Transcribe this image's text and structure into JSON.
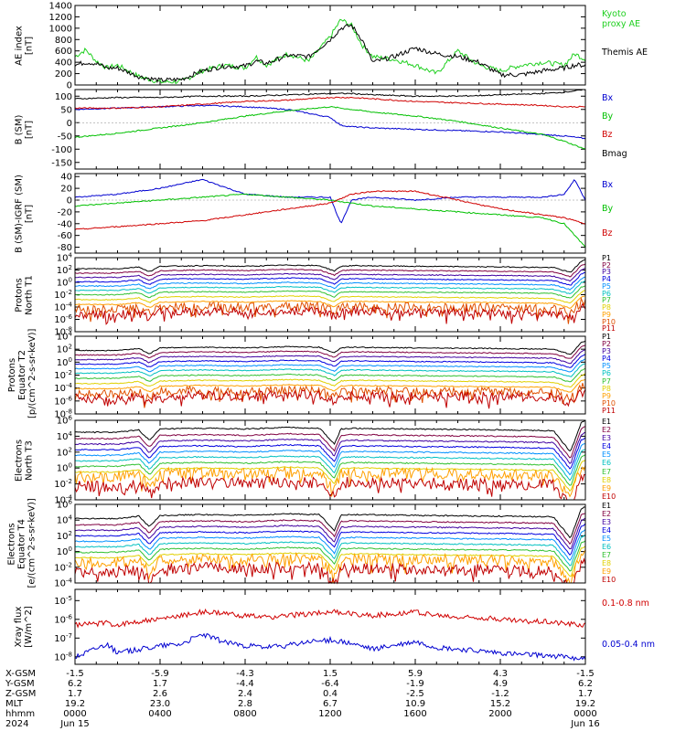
{
  "x_ticks": [
    "0000",
    "0400",
    "0800",
    "1200",
    "1600",
    "2000",
    "0000"
  ],
  "ephemeris": {
    "rows": [
      {
        "label": "X-GSM",
        "values": [
          "-1.5",
          "-5.9",
          "-4.3",
          "1.5",
          "5.9",
          "4.3",
          "-1.5"
        ]
      },
      {
        "label": "Y-GSM",
        "values": [
          "6.2",
          "1.7",
          "-4.4",
          "-6.4",
          "-1.9",
          "4.9",
          "6.2"
        ]
      },
      {
        "label": "Z-GSM",
        "values": [
          "1.7",
          "2.6",
          "2.4",
          "0.4",
          "-2.5",
          "-1.2",
          "1.7"
        ]
      },
      {
        "label": "MLT",
        "values": [
          "19.2",
          "23.0",
          "2.8",
          "6.7",
          "10.9",
          "15.2",
          "19.2"
        ]
      },
      {
        "label": "hhmm",
        "values": [
          "0000",
          "0400",
          "0800",
          "1200",
          "1600",
          "2000",
          "0000"
        ]
      },
      {
        "label": "2024",
        "values": [
          "Jun 15",
          "",
          "",
          "",
          "",
          "",
          "Jun 16"
        ]
      }
    ]
  },
  "colors": {
    "green": "#00c000",
    "blue": "#0000d0",
    "red": "#d00000",
    "black": "#000000",
    "kyoto": "#20d020"
  },
  "chart_data": [
    {
      "type": "line",
      "ylabel": "AE index\n[nT]",
      "yscale": "linear",
      "ylim": [
        0,
        1400
      ],
      "yticks": [
        "0",
        "200",
        "400",
        "600",
        "800",
        "1000",
        "1200",
        "1400"
      ],
      "legend": [
        "Kyoto\nproxy AE",
        "Themis AE"
      ],
      "series": [
        {
          "name": "Kyoto proxy AE",
          "color": "#20d020",
          "x": [
            0,
            0.5,
            1,
            1.5,
            2,
            3,
            4,
            5,
            6,
            7,
            8,
            8.5,
            9,
            10,
            11,
            12,
            12.5,
            13,
            13.5,
            14,
            15,
            16,
            17,
            18,
            19,
            20,
            21,
            22,
            23,
            23.5,
            24
          ],
          "y": [
            500,
            620,
            420,
            300,
            350,
            150,
            50,
            60,
            250,
            350,
            300,
            500,
            350,
            550,
            420,
            850,
            1150,
            1050,
            700,
            500,
            450,
            350,
            200,
            600,
            350,
            250,
            350,
            400,
            350,
            550,
            450
          ]
        },
        {
          "name": "Themis AE",
          "color": "#000000",
          "x": [
            0,
            0.5,
            1,
            1.5,
            2,
            3,
            4,
            5,
            6,
            7,
            8,
            8.5,
            9,
            10,
            11,
            12,
            12.5,
            13,
            13.5,
            14,
            15,
            16,
            17,
            18,
            19,
            20,
            21,
            22,
            23,
            23.5,
            24
          ],
          "y": [
            350,
            400,
            380,
            300,
            300,
            150,
            80,
            100,
            250,
            330,
            330,
            420,
            380,
            520,
            500,
            800,
            1000,
            1050,
            800,
            400,
            500,
            650,
            550,
            500,
            400,
            180,
            180,
            250,
            300,
            350,
            350
          ]
        }
      ]
    },
    {
      "type": "line",
      "ylabel": "B (SM)\n[nT]",
      "yscale": "linear",
      "ylim": [
        -175,
        125
      ],
      "yticks": [
        "-150",
        "-100",
        "-50",
        "0",
        "50",
        "100"
      ],
      "legend": [
        "Bx",
        "By",
        "Bz",
        "Bmag"
      ],
      "series": [
        {
          "name": "Bx",
          "color": "#0000d0",
          "x": [
            0,
            2,
            4,
            6,
            8,
            10,
            12,
            12.5,
            13,
            14,
            16,
            18,
            20,
            22,
            23,
            24
          ],
          "y": [
            50,
            55,
            60,
            65,
            60,
            50,
            20,
            -10,
            -15,
            -20,
            -25,
            -30,
            -35,
            -45,
            -50,
            -60
          ]
        },
        {
          "name": "By",
          "color": "#00c000",
          "x": [
            0,
            2,
            4,
            6,
            8,
            10,
            12,
            13,
            14,
            16,
            18,
            20,
            22,
            23,
            24
          ],
          "y": [
            -55,
            -40,
            -20,
            0,
            25,
            45,
            60,
            50,
            40,
            25,
            5,
            -20,
            -45,
            -70,
            -100
          ]
        },
        {
          "name": "Bz",
          "color": "#d00000",
          "x": [
            0,
            2,
            4,
            6,
            8,
            10,
            12,
            13,
            14,
            16,
            18,
            20,
            22,
            23,
            24
          ],
          "y": [
            55,
            55,
            60,
            70,
            80,
            85,
            95,
            95,
            90,
            80,
            75,
            70,
            65,
            60,
            60
          ]
        },
        {
          "name": "Bmag",
          "color": "#000000",
          "x": [
            0,
            2,
            4,
            6,
            8,
            10,
            12,
            13,
            14,
            16,
            18,
            20,
            22,
            23,
            24
          ],
          "y": [
            90,
            95,
            95,
            100,
            100,
            105,
            110,
            110,
            105,
            100,
            100,
            105,
            110,
            115,
            125
          ]
        }
      ]
    },
    {
      "type": "line",
      "ylabel": "B (SM)-IGRF (SM)\n[nT]",
      "yscale": "linear",
      "ylim": [
        -90,
        45
      ],
      "yticks": [
        "-80",
        "-60",
        "-40",
        "-20",
        "0",
        "20",
        "40"
      ],
      "legend": [
        "Bx",
        "By",
        "Bz"
      ],
      "series": [
        {
          "name": "Bx",
          "color": "#0000d0",
          "x": [
            0,
            2,
            4,
            6,
            8,
            10,
            12,
            12.5,
            13,
            14,
            16,
            18,
            20,
            22,
            23,
            23.5,
            24
          ],
          "y": [
            5,
            10,
            20,
            35,
            10,
            5,
            5,
            -40,
            0,
            5,
            0,
            5,
            5,
            5,
            10,
            35,
            0
          ]
        },
        {
          "name": "By",
          "color": "#00c000",
          "x": [
            0,
            2,
            4,
            6,
            8,
            10,
            12,
            13,
            14,
            16,
            18,
            20,
            22,
            23,
            24
          ],
          "y": [
            -10,
            -5,
            0,
            5,
            10,
            5,
            0,
            -5,
            -10,
            -15,
            -20,
            -25,
            -30,
            -40,
            -80
          ]
        },
        {
          "name": "Bz",
          "color": "#d00000",
          "x": [
            0,
            2,
            4,
            6,
            8,
            10,
            12,
            13,
            14,
            16,
            18,
            20,
            22,
            23,
            24
          ],
          "y": [
            -50,
            -45,
            -40,
            -35,
            -25,
            -15,
            -5,
            10,
            15,
            15,
            0,
            -15,
            -25,
            -30,
            -40
          ]
        }
      ]
    },
    {
      "type": "line",
      "ylabel": "Protons\nNorth T1",
      "yscale": "log",
      "ylim": [
        -8,
        4
      ],
      "yticks": [
        "10^{-8}",
        "10^{-6}",
        "10^{-4}",
        "10^{-2}",
        "10^{0}",
        "10^{2}",
        "10^{4}"
      ],
      "legend": [
        "P1",
        "P2",
        "P3",
        "P4",
        "P5",
        "P6",
        "P7",
        "P8",
        "P9",
        "P10",
        "P11"
      ],
      "channels": [
        {
          "name": "P1",
          "color": "#000000",
          "level": 2.2
        },
        {
          "name": "P2",
          "color": "#800040",
          "level": 1.5
        },
        {
          "name": "P3",
          "color": "#4000a0",
          "level": 0.8
        },
        {
          "name": "P4",
          "color": "#0000e0",
          "level": 0.1
        },
        {
          "name": "P5",
          "color": "#0090ff",
          "level": -0.6
        },
        {
          "name": "P6",
          "color": "#00c0c0",
          "level": -1.3
        },
        {
          "name": "P7",
          "color": "#30c030",
          "level": -2.0
        },
        {
          "name": "P8",
          "color": "#e0d000",
          "level": -2.8
        },
        {
          "name": "P9",
          "color": "#ffa000",
          "level": -3.6
        },
        {
          "name": "P10",
          "color": "#e05000",
          "level": -4.4
        },
        {
          "name": "P11",
          "color": "#c00000",
          "level": -5.2
        }
      ]
    },
    {
      "type": "line",
      "ylabel": "Protons\nEquator T2\n[p/(cm^2-s-sr-keV)]",
      "yscale": "log",
      "ylim": [
        -8,
        4
      ],
      "yticks": [
        "10^{-8}",
        "10^{-6}",
        "10^{-4}",
        "10^{-2}",
        "10^{0}",
        "10^{2}",
        "10^{4}"
      ],
      "legend": [
        "P1",
        "P2",
        "P3",
        "P4",
        "P5",
        "P6",
        "P7",
        "P8",
        "P9",
        "P10",
        "P11"
      ],
      "channels": [
        {
          "name": "P1",
          "color": "#000000",
          "level": 1.8
        },
        {
          "name": "P2",
          "color": "#800040",
          "level": 1.1
        },
        {
          "name": "P3",
          "color": "#4000a0",
          "level": 0.4
        },
        {
          "name": "P4",
          "color": "#0000e0",
          "level": -0.3
        },
        {
          "name": "P5",
          "color": "#0090ff",
          "level": -1.0
        },
        {
          "name": "P6",
          "color": "#00c0c0",
          "level": -1.7
        },
        {
          "name": "P7",
          "color": "#30c030",
          "level": -2.5
        },
        {
          "name": "P8",
          "color": "#e0d000",
          "level": -3.3
        },
        {
          "name": "P9",
          "color": "#ffa000",
          "level": -4.1
        },
        {
          "name": "P10",
          "color": "#e05000",
          "level": -4.9
        },
        {
          "name": "P11",
          "color": "#c00000",
          "level": -5.6
        }
      ]
    },
    {
      "type": "line",
      "ylabel": "Electrons\nNorth T3",
      "yscale": "log",
      "ylim": [
        -4,
        6
      ],
      "yticks": [
        "10^{-4}",
        "10^{-2}",
        "10^{0}",
        "10^{2}",
        "10^{4}",
        "10^{6}"
      ],
      "legend": [
        "E1",
        "E2",
        "E3",
        "E4",
        "E5",
        "E6",
        "E7",
        "E8",
        "E9",
        "E10"
      ],
      "channels": [
        {
          "name": "E1",
          "color": "#000000",
          "level": 4.5
        },
        {
          "name": "E2",
          "color": "#800040",
          "level": 3.7
        },
        {
          "name": "E3",
          "color": "#4000a0",
          "level": 3.0
        },
        {
          "name": "E4",
          "color": "#0000e0",
          "level": 2.3
        },
        {
          "name": "E5",
          "color": "#0090ff",
          "level": 1.6
        },
        {
          "name": "E6",
          "color": "#00c0c0",
          "level": 0.9
        },
        {
          "name": "E7",
          "color": "#30c030",
          "level": 0.2
        },
        {
          "name": "E8",
          "color": "#e0d000",
          "level": -0.5
        },
        {
          "name": "E9",
          "color": "#ffa000",
          "level": -1.1
        },
        {
          "name": "E10",
          "color": "#c00000",
          "level": -2.3
        }
      ]
    },
    {
      "type": "line",
      "ylabel": "Electrons\nEquator T4\n[e/(cm^2-s-sr-keV)]",
      "yscale": "log",
      "ylim": [
        -4,
        6
      ],
      "yticks": [
        "10^{-4}",
        "10^{-2}",
        "10^{0}",
        "10^{2}",
        "10^{4}",
        "10^{6}"
      ],
      "legend": [
        "E1",
        "E2",
        "E3",
        "E4",
        "E5",
        "E6",
        "E7",
        "E8",
        "E9",
        "E10"
      ],
      "channels": [
        {
          "name": "E1",
          "color": "#000000",
          "level": 4.2
        },
        {
          "name": "E2",
          "color": "#800040",
          "level": 3.4
        },
        {
          "name": "E3",
          "color": "#4000a0",
          "level": 2.7
        },
        {
          "name": "E4",
          "color": "#0000e0",
          "level": 2.0
        },
        {
          "name": "E5",
          "color": "#0090ff",
          "level": 1.3
        },
        {
          "name": "E6",
          "color": "#00c0c0",
          "level": 0.6
        },
        {
          "name": "E7",
          "color": "#30c030",
          "level": -0.1
        },
        {
          "name": "E8",
          "color": "#e0d000",
          "level": -0.8
        },
        {
          "name": "E9",
          "color": "#ffa000",
          "level": -1.4
        },
        {
          "name": "E10",
          "color": "#c00000",
          "level": -2.6
        }
      ]
    },
    {
      "type": "line",
      "ylabel": "Xray flux\n[W/m^2]",
      "yscale": "log",
      "ylim": [
        -8.4,
        -4.4
      ],
      "yticks": [
        "10^{-8}",
        "10^{-7}",
        "10^{-6}",
        "10^{-5}"
      ],
      "legend": [
        "0.1-0.8 nm",
        "0.05-0.4 nm"
      ],
      "series": [
        {
          "name": "0.1-0.8 nm",
          "color": "#d00000",
          "x": [
            0,
            1.5,
            2,
            3,
            4,
            5,
            6,
            7,
            8,
            9,
            10,
            11,
            12,
            13,
            14,
            15,
            16,
            17,
            18,
            19,
            20,
            21,
            22,
            23,
            24
          ],
          "y": [
            -6.3,
            -6.2,
            -6.3,
            -6.1,
            -6.0,
            -5.8,
            -5.6,
            -5.7,
            -5.8,
            -5.9,
            -5.8,
            -5.7,
            -5.6,
            -5.7,
            -5.8,
            -5.7,
            -5.6,
            -5.8,
            -5.9,
            -5.9,
            -6.0,
            -6.1,
            -6.1,
            -6.2,
            -6.3
          ]
        },
        {
          "name": "0.05-0.4 nm",
          "color": "#0000d0",
          "x": [
            0,
            1.5,
            2,
            3,
            4,
            5,
            6,
            7,
            8,
            9,
            10,
            11,
            12,
            13,
            14,
            15,
            16,
            17,
            18,
            19,
            20,
            21,
            22,
            23,
            24
          ],
          "y": [
            -8.0,
            -7.3,
            -7.8,
            -7.6,
            -7.4,
            -7.3,
            -6.8,
            -7.2,
            -7.4,
            -7.5,
            -7.4,
            -7.2,
            -7.1,
            -7.3,
            -7.6,
            -7.4,
            -7.2,
            -7.5,
            -7.6,
            -7.7,
            -7.8,
            -7.9,
            -7.9,
            -8.0,
            -8.1
          ]
        }
      ]
    }
  ]
}
